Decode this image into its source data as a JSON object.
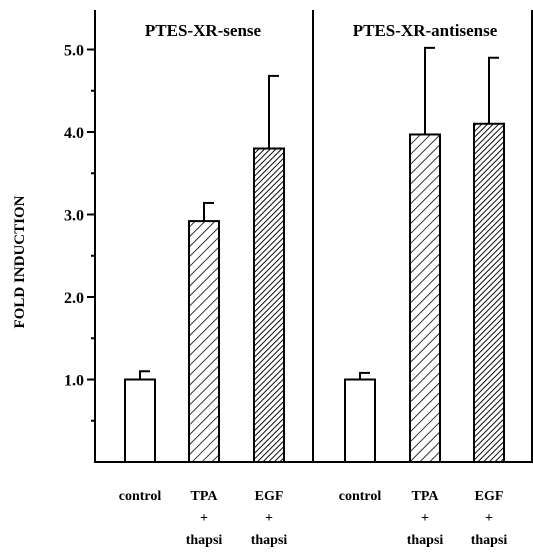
{
  "chart_data": {
    "type": "bar",
    "title": "",
    "ylabel": "FOLD INDUCTION",
    "xlabel": "",
    "ylim": [
      0,
      5.5
    ],
    "yticks": [
      "1.0",
      "2.0",
      "3.0",
      "4.0",
      "5.0"
    ],
    "grid": false,
    "panels": [
      {
        "title": "PTES-XR-sense",
        "bars": [
          {
            "category": [
              "control"
            ],
            "value": 1.0,
            "error": 0.1,
            "fill": "open"
          },
          {
            "category": [
              "TPA",
              "+",
              "thapsi"
            ],
            "value": 2.92,
            "error": 0.22,
            "fill": "light-hatch"
          },
          {
            "category": [
              "EGF",
              "+",
              "thapsi"
            ],
            "value": 3.8,
            "error": 0.88,
            "fill": "dense-hatch"
          }
        ]
      },
      {
        "title": "PTES-XR-antisense",
        "bars": [
          {
            "category": [
              "control"
            ],
            "value": 1.0,
            "error": 0.08,
            "fill": "open"
          },
          {
            "category": [
              "TPA",
              "+",
              "thapsi"
            ],
            "value": 3.97,
            "error": 1.05,
            "fill": "light-hatch"
          },
          {
            "category": [
              "EGF",
              "+",
              "thapsi"
            ],
            "value": 4.1,
            "error": 0.8,
            "fill": "dense-hatch"
          }
        ]
      }
    ]
  }
}
